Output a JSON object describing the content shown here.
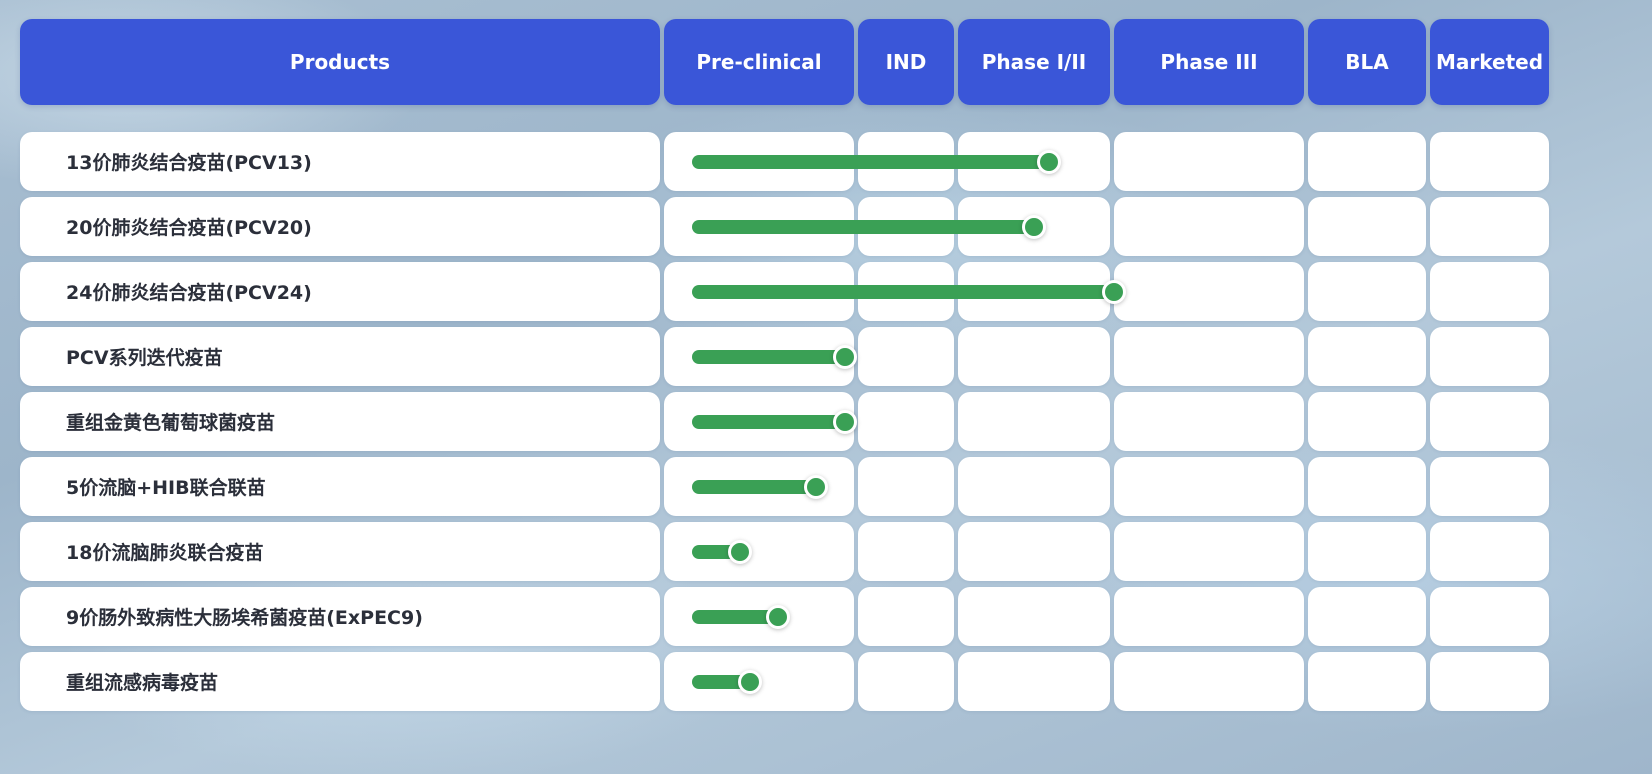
{
  "chart_data": {
    "type": "bar",
    "stages": [
      "Pre-clinical",
      "IND",
      "Phase I/II",
      "Phase III",
      "BLA",
      "Marketed"
    ],
    "header": {
      "products_label": "Products"
    },
    "products": [
      {
        "name": "13价肺炎结合疫苗(PCV13)",
        "progress": 2.6
      },
      {
        "name": "20价肺炎结合疫苗(PCV20)",
        "progress": 2.5
      },
      {
        "name": "24价肺炎结合疫苗(PCV24)",
        "progress": 3.0
      },
      {
        "name": "PCV系列迭代疫苗",
        "progress": 0.95
      },
      {
        "name": "重组金黄色葡萄球菌疫苗",
        "progress": 0.95
      },
      {
        "name": "5价流脑+HIB联合联苗",
        "progress": 0.8
      },
      {
        "name": "18价流脑肺炎联合疫苗",
        "progress": 0.4
      },
      {
        "name": "9价肠外致病性大肠埃希菌疫苗(ExPEC9)",
        "progress": 0.6
      },
      {
        "name": "重组流感病毒疫苗",
        "progress": 0.45
      }
    ],
    "bar_color": "#3aa055",
    "header_color": "#3a56d8"
  }
}
